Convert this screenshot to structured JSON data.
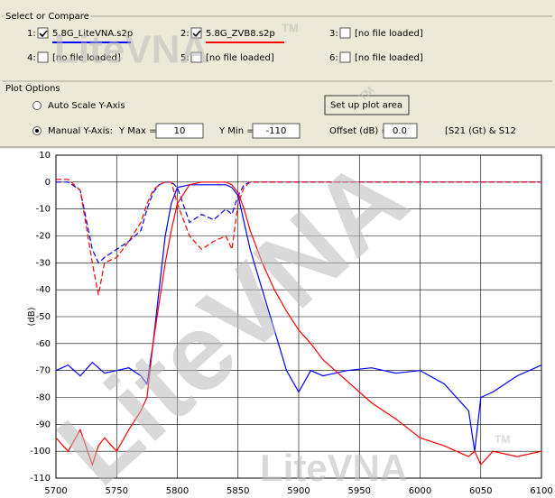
{
  "select_panel": {
    "title": "Select or Compare",
    "slots": [
      {
        "label": "1:",
        "checked": true
      },
      {
        "label": "2:",
        "checked": true
      },
      {
        "label": "3:",
        "file": "[no file loaded]"
      },
      {
        "label": "4:",
        "file": "[no file loaded]"
      },
      {
        "label": "5:",
        "file": "[no file loaded]"
      },
      {
        "label": "6:",
        "file": "[no file loaded]"
      }
    ]
  },
  "plot_options": {
    "title": "Plot Options",
    "auto_scale": "Auto Scale Y-Axis",
    "manual": "Manual Y-Axis:",
    "ymax_label": "Y Max =",
    "ymax_value": "10",
    "ymin_label": "Y Min =",
    "ymin_value": "-110",
    "offset_label": "Offset (dB) =",
    "offset_value": "0.0",
    "button": "Set up plot area",
    "mode": "[S21 (Gt) & S12"
  },
  "watermarks": [
    "LiteVNA",
    "TM",
    "LiteVNA",
    "TM",
    "LiteVNA",
    "TM"
  ],
  "chart_data": {
    "type": "line",
    "ylabel": "(dB)",
    "grid": true,
    "x": [
      5700,
      5710,
      5720,
      5730,
      5735,
      5740,
      5750,
      5760,
      5770,
      5775,
      5780,
      5785,
      5790,
      5795,
      5800,
      5810,
      5820,
      5830,
      5840,
      5845,
      5850,
      5855,
      5860,
      5870,
      5880,
      5890,
      5900,
      5910,
      5920,
      5940,
      5960,
      5980,
      6000,
      6020,
      6030,
      6040,
      6045,
      6050,
      6060,
      6080,
      6100
    ],
    "series": [
      {
        "name": "5.8G_LiteVNA.s2p",
        "color": "#0000ff",
        "values": [
          -70,
          -68,
          -72,
          -67,
          -69,
          -71,
          -70,
          -69,
          -72,
          -75,
          -60,
          -40,
          -20,
          -8,
          -2,
          -1,
          -1,
          -1,
          -1,
          -2,
          -5,
          -15,
          -25,
          -40,
          -55,
          -70,
          -78,
          -70,
          -72,
          -70,
          -69,
          -71,
          -70,
          -75,
          -80,
          -85,
          -100,
          -80,
          -78,
          -72,
          -68
        ],
        "reflection_values": [
          0,
          0,
          -3,
          -25,
          -30,
          -28,
          -25,
          -22,
          -18,
          -10,
          -4,
          -1,
          0,
          0,
          -2,
          -15,
          -12,
          -14,
          -10,
          -12,
          -5,
          -1,
          0,
          0,
          0,
          0,
          0,
          0,
          0,
          0,
          0,
          0,
          0,
          0,
          0,
          0,
          0,
          0,
          0,
          0,
          0
        ]
      },
      {
        "name": "5.8G_ZVB8.s2p",
        "color": "#ff0000",
        "values": [
          -95,
          -100,
          -92,
          -105,
          -98,
          -95,
          -100,
          -92,
          -85,
          -80,
          -60,
          -45,
          -30,
          -18,
          -8,
          -1,
          0,
          0,
          0,
          -1,
          -4,
          -10,
          -18,
          -30,
          -40,
          -48,
          -55,
          -60,
          -66,
          -74,
          -82,
          -88,
          -95,
          -98,
          -100,
          -102,
          -100,
          -105,
          -100,
          -102,
          -100
        ],
        "reflection_values": [
          1,
          1,
          -3,
          -30,
          -42,
          -30,
          -28,
          -22,
          -15,
          -8,
          -3,
          -1,
          0,
          0,
          -8,
          -20,
          -25,
          -22,
          -20,
          -25,
          -8,
          -2,
          0,
          0,
          0,
          0,
          0,
          0,
          0,
          0,
          0,
          0,
          0,
          0,
          0,
          0,
          0,
          0,
          0,
          0,
          0
        ]
      }
    ],
    "xlim": [
      5700,
      6100
    ],
    "xticks": [
      5700,
      5750,
      5800,
      5850,
      5900,
      5950,
      6000,
      6050,
      6100
    ],
    "ylim": [
      -110,
      10
    ],
    "yticks": [
      10,
      0,
      -10,
      -20,
      -30,
      -40,
      -50,
      -60,
      -70,
      -80,
      -90,
      -100,
      -110
    ]
  }
}
